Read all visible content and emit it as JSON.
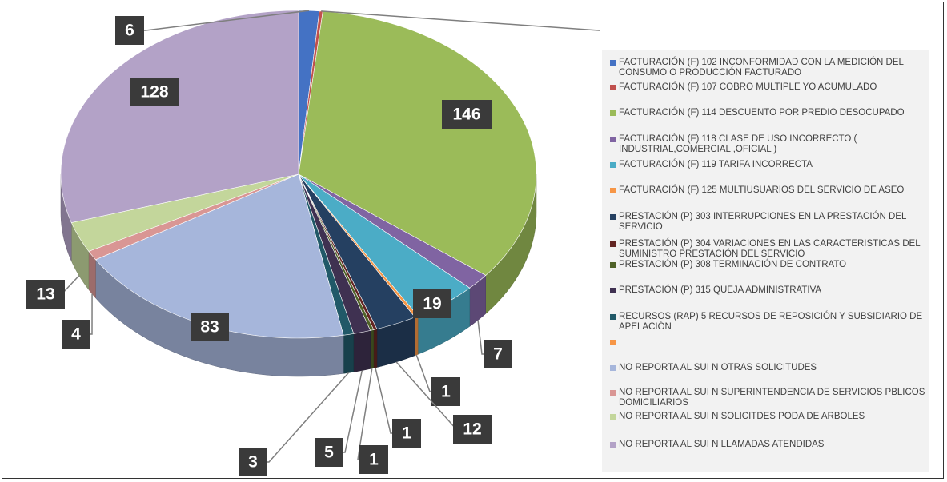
{
  "chart_data": {
    "type": "pie3d",
    "categories": [
      "FACTURACIÓN  (F) 102 INCONFORMIDAD CON LA MEDICIÓN DEL CONSUMO O PRODUCCIÓN FACTURADO",
      "FACTURACIÓN  (F) 107 COBRO MULTIPLE YO ACUMULADO",
      "FACTURACIÓN  (F) 114 DESCUENTO POR PREDIO DESOCUPADO",
      "FACTURACIÓN  (F) 118 CLASE DE USO INCORRECTO ( INDUSTRIAL,COMERCIAL ,OFICIAL )",
      "FACTURACIÓN  (F) 119 TARIFA INCORRECTA",
      "FACTURACIÓN  (F) 125 MULTIUSUARIOS DEL SERVICIO DE ASEO",
      "PRESTACIÓN     (P) 303 INTERRUPCIONES EN LA PRESTACIÓN DEL SERVICIO",
      "PRESTACIÓN     (P) 304 VARIACIONES EN LAS CARACTERISTICAS DEL SUMINISTRO PRESTACIÓN DEL SERVICIO",
      "PRESTACIÓN     (P) 308 TERMINACIÓN DE CONTRATO",
      "PRESTACIÓN     (P) 315 QUEJA ADMINISTRATIVA",
      "RECURSOS     (RAP) 5 RECURSOS DE REPOSICIÓN Y SUBSIDIARIO DE APELACIÓN",
      null,
      "NO REPORTA AL SUI N OTRAS SOLICITUDES",
      "NO REPORTA AL SUI N SUPERINTENDENCIA DE SERVICIOS PBLICOS DOMICILIARIOS",
      "NO REPORTA AL SUI N SOLICITDES PODA DE ARBOLES",
      "NO REPORTA AL SUI N LLAMADAS ATENDIDAS"
    ],
    "values": [
      6,
      1,
      146,
      7,
      19,
      1,
      12,
      1,
      1,
      5,
      3,
      0,
      83,
      4,
      13,
      128
    ],
    "colors": [
      "#4472c4",
      "#c0504d",
      "#9bbb59",
      "#8064a2",
      "#4bacc6",
      "#f79646",
      "#254061",
      "#632523",
      "#4f6228",
      "#3f3151",
      "#215968",
      "#f79646",
      "#a6b6db",
      "#d99694",
      "#c3d69b",
      "#b3a2c7"
    ],
    "legend": "right"
  }
}
